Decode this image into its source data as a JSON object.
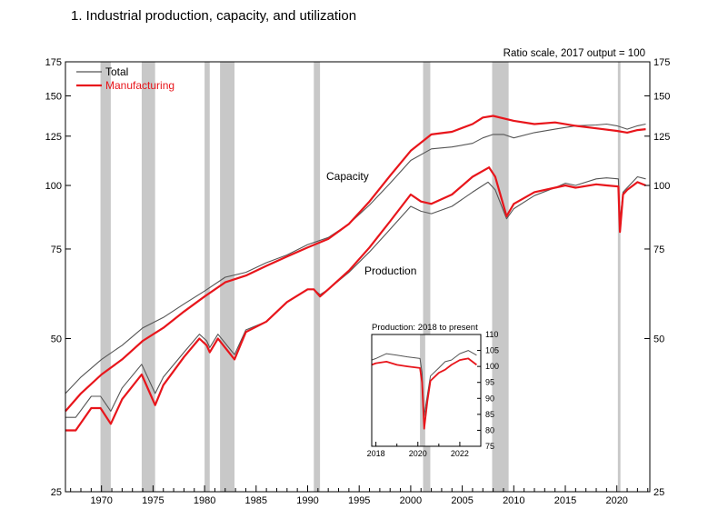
{
  "title": "1.  Industrial production, capacity, and utilization",
  "chart_data": [
    {
      "type": "line",
      "scale_note": "Ratio scale, 2017 output = 100",
      "y_scale": "log",
      "xlim": [
        1966.5,
        2023.2
      ],
      "ylim": [
        25,
        175
      ],
      "y_ticks": [
        25,
        50,
        75,
        100,
        125,
        150,
        175
      ],
      "x_ticks": [
        1970,
        1975,
        1980,
        1985,
        1990,
        1995,
        2000,
        2005,
        2010,
        2015,
        2020
      ],
      "legend": {
        "position": "top-left",
        "entries": [
          "Total",
          "Manufacturing"
        ]
      },
      "annotations": [
        "Capacity",
        "Production"
      ],
      "recessions": [
        [
          1969.9,
          1970.9
        ],
        [
          1973.9,
          1975.2
        ],
        [
          1980.0,
          1980.5
        ],
        [
          1981.5,
          1982.9
        ],
        [
          1990.6,
          1991.2
        ],
        [
          2001.2,
          2001.9
        ],
        [
          2007.9,
          2009.5
        ],
        [
          2020.1,
          2020.35
        ]
      ],
      "series": [
        {
          "name": "Total",
          "color": "#555555",
          "role": "capacity",
          "points": [
            [
              1966.5,
              39
            ],
            [
              1968,
              42
            ],
            [
              1970,
              45.5
            ],
            [
              1972,
              48.5
            ],
            [
              1974,
              52.5
            ],
            [
              1976,
              55
            ],
            [
              1978,
              58.5
            ],
            [
              1980,
              62
            ],
            [
              1982,
              66
            ],
            [
              1984,
              67.5
            ],
            [
              1986,
              70.5
            ],
            [
              1988,
              73
            ],
            [
              1990,
              76.5
            ],
            [
              1992,
              79
            ],
            [
              1994,
              84
            ],
            [
              1996,
              91.5
            ],
            [
              1998,
              101
            ],
            [
              2000,
              112
            ],
            [
              2002,
              118
            ],
            [
              2004,
              119
            ],
            [
              2006,
              121
            ],
            [
              2007,
              124
            ],
            [
              2008,
              126
            ],
            [
              2009,
              126
            ],
            [
              2010,
              124
            ],
            [
              2012,
              127
            ],
            [
              2014,
              129
            ],
            [
              2016,
              131
            ],
            [
              2018,
              131.5
            ],
            [
              2019,
              132
            ],
            [
              2020,
              131
            ],
            [
              2021,
              129
            ],
            [
              2022,
              131
            ],
            [
              2022.8,
              132
            ]
          ]
        },
        {
          "name": "Manufacturing",
          "color": "#e8151b",
          "role": "capacity",
          "points": [
            [
              1966.5,
              36
            ],
            [
              1968,
              39
            ],
            [
              1970,
              42.5
            ],
            [
              1972,
              45.5
            ],
            [
              1974,
              49.5
            ],
            [
              1976,
              52.5
            ],
            [
              1978,
              56.5
            ],
            [
              1980,
              60.5
            ],
            [
              1982,
              64.5
            ],
            [
              1984,
              66.5
            ],
            [
              1986,
              69.5
            ],
            [
              1988,
              72.5
            ],
            [
              1990,
              75.5
            ],
            [
              1992,
              78.5
            ],
            [
              1994,
              84
            ],
            [
              1996,
              93
            ],
            [
              1998,
              104.5
            ],
            [
              2000,
              117
            ],
            [
              2002,
              126
            ],
            [
              2004,
              127.5
            ],
            [
              2006,
              132
            ],
            [
              2007,
              136
            ],
            [
              2008,
              137
            ],
            [
              2010,
              134
            ],
            [
              2012,
              132
            ],
            [
              2014,
              133
            ],
            [
              2016,
              131
            ],
            [
              2018,
              129.5
            ],
            [
              2020,
              128
            ],
            [
              2021,
              127
            ],
            [
              2022,
              128.5
            ],
            [
              2022.8,
              129
            ]
          ]
        },
        {
          "name": "Total",
          "color": "#555555",
          "role": "production",
          "points": [
            [
              1966.5,
              35
            ],
            [
              1967.5,
              35
            ],
            [
              1969,
              38.5
            ],
            [
              1969.9,
              38.5
            ],
            [
              1970.9,
              36
            ],
            [
              1972,
              40
            ],
            [
              1973.9,
              44.5
            ],
            [
              1975.2,
              39
            ],
            [
              1976,
              42
            ],
            [
              1978,
              47
            ],
            [
              1979.5,
              51
            ],
            [
              1980.2,
              49.5
            ],
            [
              1980.5,
              48
            ],
            [
              1981.3,
              51
            ],
            [
              1982.9,
              46.5
            ],
            [
              1984,
              52
            ],
            [
              1986,
              54
            ],
            [
              1988,
              59
            ],
            [
              1990,
              62.5
            ],
            [
              1990.6,
              62.5
            ],
            [
              1991.2,
              61
            ],
            [
              1992,
              62.5
            ],
            [
              1994,
              67.5
            ],
            [
              1996,
              74
            ],
            [
              1998,
              82
            ],
            [
              2000,
              91
            ],
            [
              2001,
              89
            ],
            [
              2002,
              88
            ],
            [
              2004,
              91
            ],
            [
              2006,
              97
            ],
            [
              2007.5,
              101.5
            ],
            [
              2008.2,
              98
            ],
            [
              2009.3,
              86
            ],
            [
              2010,
              90
            ],
            [
              2012,
              95.5
            ],
            [
              2014,
              99
            ],
            [
              2015,
              101
            ],
            [
              2016,
              100
            ],
            [
              2018,
              103
            ],
            [
              2019,
              103.5
            ],
            [
              2020.15,
              103
            ],
            [
              2020.3,
              85
            ],
            [
              2020.6,
              97
            ],
            [
              2021,
              99
            ],
            [
              2022,
              104
            ],
            [
              2022.8,
              103
            ]
          ]
        },
        {
          "name": "Manufacturing",
          "color": "#e8151b",
          "role": "production",
          "points": [
            [
              1966.5,
              33
            ],
            [
              1967.5,
              33
            ],
            [
              1969,
              36.5
            ],
            [
              1969.9,
              36.5
            ],
            [
              1970.9,
              34
            ],
            [
              1972,
              38
            ],
            [
              1973.9,
              42.5
            ],
            [
              1975.2,
              37
            ],
            [
              1976,
              40.5
            ],
            [
              1978,
              46
            ],
            [
              1979.5,
              50
            ],
            [
              1980.2,
              48.5
            ],
            [
              1980.5,
              47
            ],
            [
              1981.3,
              50
            ],
            [
              1982.9,
              45.5
            ],
            [
              1984,
              51.5
            ],
            [
              1986,
              54
            ],
            [
              1988,
              59
            ],
            [
              1990,
              62.5
            ],
            [
              1990.6,
              62.5
            ],
            [
              1991.2,
              60.5
            ],
            [
              1992,
              62.5
            ],
            [
              1994,
              68
            ],
            [
              1996,
              75.5
            ],
            [
              1998,
              85
            ],
            [
              2000,
              96
            ],
            [
              2001,
              93
            ],
            [
              2002,
              92
            ],
            [
              2004,
              96
            ],
            [
              2006,
              104
            ],
            [
              2007.6,
              108.5
            ],
            [
              2008.2,
              104
            ],
            [
              2009.3,
              87
            ],
            [
              2010,
              92
            ],
            [
              2012,
              97
            ],
            [
              2014,
              99
            ],
            [
              2015,
              100
            ],
            [
              2016,
              99
            ],
            [
              2018,
              100.5
            ],
            [
              2019,
              100
            ],
            [
              2020.15,
              99.5
            ],
            [
              2020.3,
              81
            ],
            [
              2020.6,
              96
            ],
            [
              2021,
              98
            ],
            [
              2022,
              101.5
            ],
            [
              2022.8,
              100
            ]
          ]
        }
      ]
    },
    {
      "type": "line",
      "title": "Production: 2018 to present",
      "xlim": [
        2017.8,
        2023.0
      ],
      "ylim": [
        75,
        110
      ],
      "y_ticks": [
        75,
        80,
        85,
        90,
        95,
        100,
        105,
        110
      ],
      "x_ticks": [
        2018,
        2020,
        2022
      ],
      "recessions": [
        [
          2020.1,
          2020.35
        ]
      ],
      "series": [
        {
          "name": "Total",
          "color": "#555555",
          "points": [
            [
              2017.8,
              102
            ],
            [
              2018,
              102.5
            ],
            [
              2018.5,
              104
            ],
            [
              2019,
              103.5
            ],
            [
              2019.5,
              103
            ],
            [
              2020.1,
              102.5
            ],
            [
              2020.2,
              98
            ],
            [
              2020.3,
              84.5
            ],
            [
              2020.45,
              91
            ],
            [
              2020.6,
              97
            ],
            [
              2021,
              99.5
            ],
            [
              2021.3,
              101.5
            ],
            [
              2021.6,
              102
            ],
            [
              2022,
              104
            ],
            [
              2022.4,
              105
            ],
            [
              2022.8,
              103.5
            ]
          ]
        },
        {
          "name": "Manufacturing",
          "color": "#e8151b",
          "points": [
            [
              2017.8,
              100.5
            ],
            [
              2018,
              101
            ],
            [
              2018.5,
              101.5
            ],
            [
              2019,
              100.5
            ],
            [
              2019.5,
              100
            ],
            [
              2020.1,
              99.5
            ],
            [
              2020.2,
              95
            ],
            [
              2020.3,
              80.5
            ],
            [
              2020.45,
              89
            ],
            [
              2020.6,
              95.5
            ],
            [
              2021,
              98
            ],
            [
              2021.3,
              99
            ],
            [
              2021.6,
              100.5
            ],
            [
              2022,
              102
            ],
            [
              2022.4,
              102.5
            ],
            [
              2022.8,
              100.5
            ]
          ]
        }
      ]
    }
  ]
}
